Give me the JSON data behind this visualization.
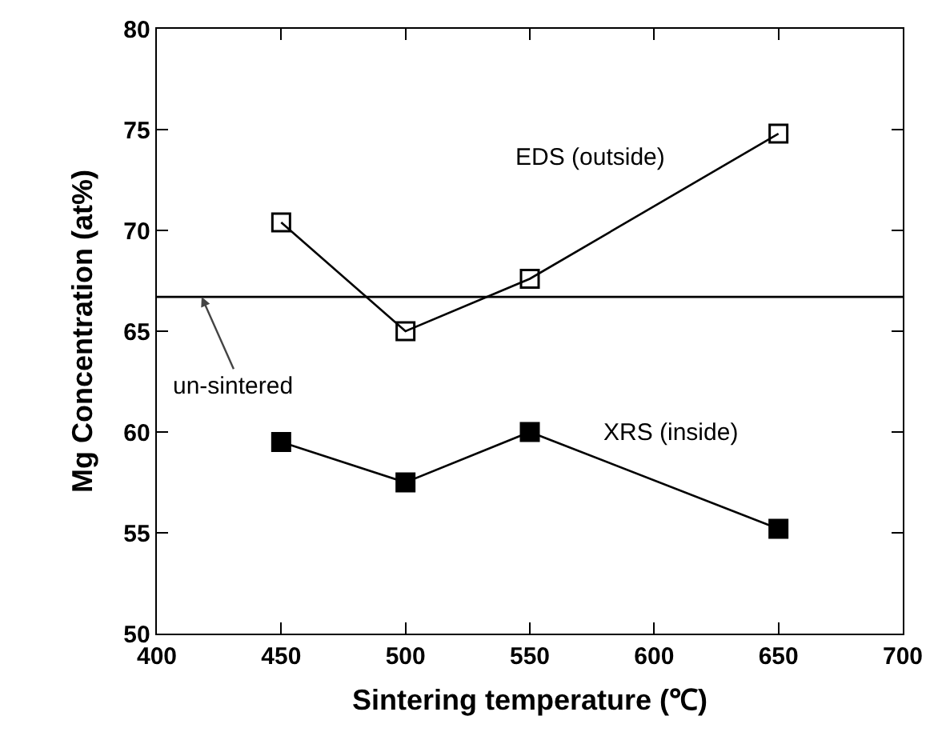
{
  "chart_data": {
    "type": "line",
    "xlabel": "Sintering temperature (℃)",
    "ylabel": "Mg Concentration (at%)",
    "x": [
      450,
      500,
      550,
      650
    ],
    "series": [
      {
        "name": "EDS (outside)",
        "color": "#000000",
        "values": [
          70.4,
          65.0,
          67.6,
          74.8
        ]
      },
      {
        "name": "XRS (inside)",
        "color": "#000000",
        "values": [
          59.5,
          57.5,
          60.0,
          55.2
        ]
      }
    ],
    "ref_lines": [
      {
        "axis": "y",
        "value": 66.7,
        "label": "un-sintered",
        "color": "#000000"
      }
    ],
    "xlim": [
      400,
      700
    ],
    "xticks": [
      400,
      450,
      500,
      550,
      600,
      650,
      700
    ],
    "ylim": [
      50,
      80
    ],
    "yticks": [
      50,
      55,
      60,
      65,
      70,
      75,
      80
    ],
    "grid": false,
    "legend": false,
    "marker": "square",
    "line_style": "solid"
  }
}
